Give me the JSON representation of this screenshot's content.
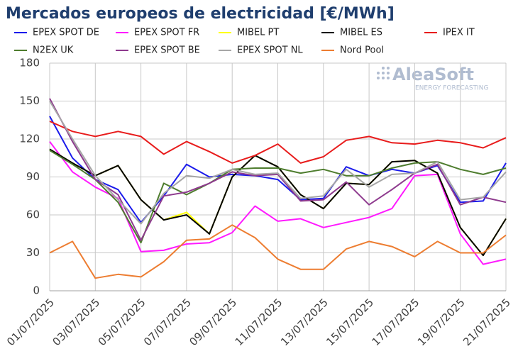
{
  "chart_data": {
    "type": "line",
    "title": "Mercados europeos de electricidad [€/MWh]",
    "logo": {
      "name": "AleaSoft",
      "tagline": "ENERGY FORECASTING"
    },
    "categories": [
      "01/07/2025",
      null,
      "03/07/2025",
      null,
      "05/07/2025",
      null,
      "07/07/2025",
      null,
      "09/07/2025",
      null,
      "11/07/2025",
      null,
      "13/07/2025",
      null,
      "15/07/2025",
      null,
      "17/07/2025",
      null,
      "19/07/2025",
      null,
      "21/07/2025"
    ],
    "ylim": [
      0,
      180
    ],
    "yticks": [
      0,
      30,
      60,
      90,
      120,
      150,
      180
    ],
    "grid": true,
    "series": [
      {
        "name": "EPEX SPOT DE",
        "color": "#1a1aeb",
        "values": [
          138,
          105,
          88,
          80,
          54,
          75,
          100,
          90,
          92,
          91,
          88,
          72,
          73,
          98,
          91,
          96,
          93,
          99,
          70,
          71,
          101
        ]
      },
      {
        "name": "EPEX SPOT FR",
        "color": "#ff1aff",
        "values": [
          118,
          94,
          82,
          73,
          31,
          32,
          37,
          38,
          46,
          67,
          55,
          57,
          50,
          54,
          58,
          65,
          91,
          92,
          45,
          21,
          25
        ]
      },
      {
        "name": "MIBEL PT",
        "color": "#ffff00",
        "values": [
          112,
          101,
          91,
          99,
          72,
          56,
          62,
          45,
          90,
          107,
          98,
          76,
          65,
          85,
          84,
          102,
          103,
          93,
          50,
          28,
          57
        ]
      },
      {
        "name": "MIBEL ES",
        "color": "#000000",
        "values": [
          112,
          101,
          91,
          99,
          72,
          56,
          60,
          45,
          90,
          107,
          98,
          76,
          65,
          85,
          84,
          102,
          103,
          93,
          50,
          28,
          57
        ]
      },
      {
        "name": "IPEX IT",
        "color": "#e81c1c",
        "values": [
          134,
          126,
          122,
          126,
          122,
          108,
          118,
          110,
          101,
          107,
          116,
          101,
          106,
          119,
          122,
          117,
          116,
          119,
          117,
          113,
          121
        ]
      },
      {
        "name": "N2EX UK",
        "color": "#4e7d2e",
        "values": [
          111,
          100,
          88,
          70,
          38,
          85,
          76,
          85,
          96,
          97,
          97,
          93,
          96,
          91,
          91,
          97,
          101,
          102,
          96,
          92,
          97
        ]
      },
      {
        "name": "EPEX SPOT BE",
        "color": "#8e3a8e",
        "values": [
          152,
          118,
          88,
          76,
          40,
          75,
          78,
          85,
          94,
          91,
          92,
          71,
          72,
          86,
          68,
          80,
          93,
          100,
          68,
          74,
          70
        ]
      },
      {
        "name": "EPEX SPOT NL",
        "color": "#a6a6a6",
        "values": [
          150,
          120,
          91,
          72,
          53,
          77,
          91,
          89,
          96,
          92,
          93,
          73,
          75,
          96,
          82,
          92,
          93,
          102,
          72,
          74,
          94
        ]
      },
      {
        "name": "Nord Pool",
        "color": "#ed7d31",
        "values": [
          30,
          39,
          10,
          13,
          11,
          23,
          40,
          41,
          52,
          42,
          25,
          17,
          17,
          33,
          39,
          35,
          27,
          39,
          30,
          30,
          44
        ]
      }
    ]
  }
}
